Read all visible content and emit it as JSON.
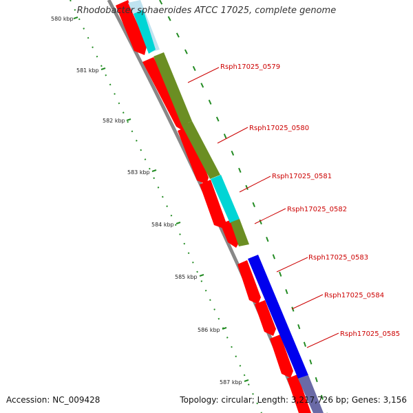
{
  "title": "Rhodobacter sphaeroides ATCC 17025, complete genome",
  "footer": {
    "accession": "Accession: NC_009428",
    "summary": "Topology: circular; Length: 3,217,726 bp; Genes: 3,156"
  },
  "colors": {
    "cds": "#ff0000",
    "olive": "#6b8e23",
    "cyan": "#00d5d5",
    "blue": "#0000ee",
    "backbone": "#888888",
    "tick": "#228b22",
    "label": "#cc0000"
  },
  "kbp_ticks": [
    "580 kbp",
    "581 kbp",
    "582 kbp",
    "583 kbp",
    "584 kbp",
    "585 kbp",
    "586 kbp",
    "587 kbp"
  ],
  "gene_labels": [
    "Rsph17025_0579",
    "Rsph17025_0580",
    "Rsph17025_0581",
    "Rsph17025_0582",
    "Rsph17025_0583",
    "Rsph17025_0584",
    "Rsph17025_0585"
  ]
}
